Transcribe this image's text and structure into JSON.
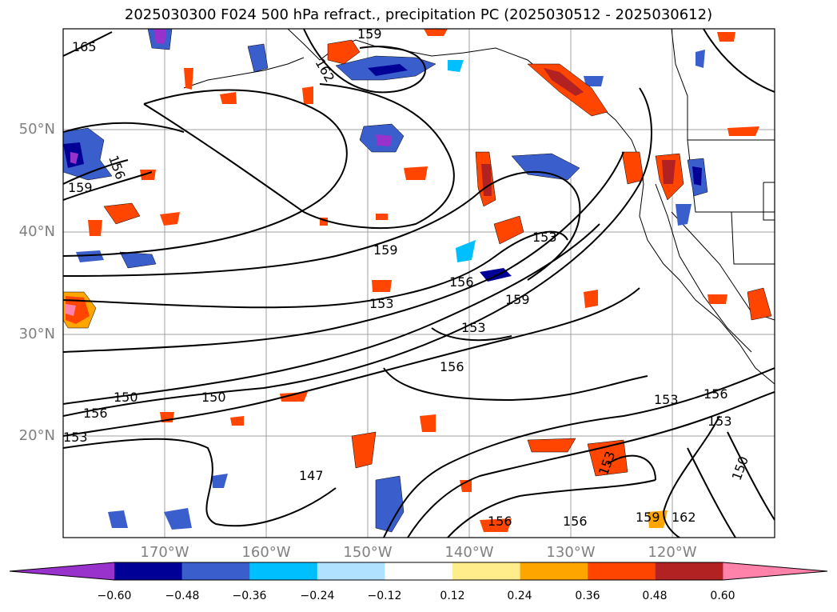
{
  "title": "2025030300 F024 500 hPa refract., precipitation PC (2025030512 - 2025030612)",
  "axes": {
    "lat_labels": [
      "50°N",
      "40°N",
      "30°N",
      "20°N"
    ],
    "lon_labels": [
      "170°W",
      "160°W",
      "150°W",
      "140°W",
      "130°W",
      "120°W"
    ]
  },
  "contour_labels": [
    "165",
    "159",
    "162",
    "156",
    "159",
    "159",
    "153",
    "156",
    "153",
    "159",
    "153",
    "156",
    "150",
    "150",
    "156",
    "153",
    "156",
    "153",
    "153",
    "147",
    "153",
    "156",
    "156",
    "159",
    "162",
    "150"
  ],
  "colorbar": {
    "colors": [
      "#9932cc",
      "#000096",
      "#3a5fcd",
      "#00bfff",
      "#b0e2ff",
      "#ffffff",
      "#ffec8b",
      "#ffa500",
      "#ff4500",
      "#b22222",
      "#ff82ab"
    ],
    "ticks": [
      "−0.60",
      "−0.48",
      "−0.36",
      "−0.24",
      "−0.12",
      "0.12",
      "0.24",
      "0.36",
      "0.48",
      "0.60"
    ]
  }
}
